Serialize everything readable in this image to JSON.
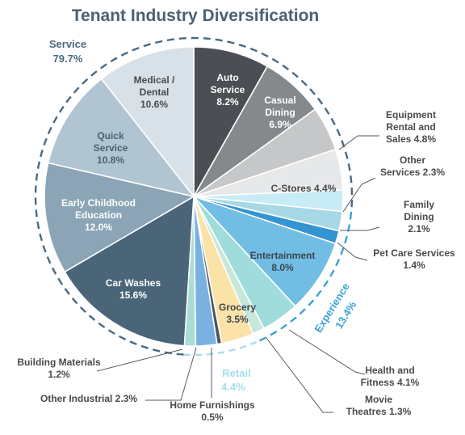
{
  "chart_data": {
    "type": "pie",
    "title": "Tenant Industry Diversification",
    "groups": [
      {
        "name": "Service",
        "value": "79.7%",
        "color": "#4a6a82"
      },
      {
        "name": "Experience",
        "value": "13.4%",
        "color": "#3aa3d6"
      },
      {
        "name": "Retail",
        "value": "4.4%",
        "color": "#a8dcea"
      }
    ],
    "slices": [
      {
        "label": "Auto Service",
        "value": 8.2,
        "display": "8.2%",
        "color": "#4b4f55",
        "text_color": "#ffffff"
      },
      {
        "label": "Casual Dining",
        "value": 6.9,
        "display": "6.9%",
        "color": "#86898c",
        "text_color": "#ffffff"
      },
      {
        "label": "Equipment Rental and Sales",
        "value": 4.8,
        "display": "4.8%",
        "color": "#c5c7c9",
        "text_color": "#4a4a4a"
      },
      {
        "label": "C-Stores",
        "value": 4.4,
        "display": "4.4%",
        "color": "#e7e8e9",
        "text_color": "#4a4a4a"
      },
      {
        "label": "Other Services",
        "value": 2.3,
        "display": "2.3%",
        "color": "#c8ecf5",
        "text_color": "#4a4a4a"
      },
      {
        "label": "Family Dining",
        "value": 2.1,
        "display": "2.1%",
        "color": "#a7d8e6",
        "text_color": "#4a4a4a"
      },
      {
        "label": "Pet Care Services",
        "value": 1.4,
        "display": "1.4%",
        "color": "#3394d1",
        "text_color": "#4a4a4a"
      },
      {
        "label": "Entertainment",
        "value": 8.0,
        "display": "8.0%",
        "color": "#72bde4",
        "text_color": "#3a4650"
      },
      {
        "label": "Health and Fitness",
        "value": 4.1,
        "display": "4.1%",
        "color": "#9fdcdb",
        "text_color": "#4a4a4a"
      },
      {
        "label": "Movie Theatres",
        "value": 1.3,
        "display": "1.3%",
        "color": "#c7e8d9",
        "text_color": "#4a4a4a"
      },
      {
        "label": "Grocery",
        "value": 3.5,
        "display": "3.5%",
        "color": "#fbe2a6",
        "text_color": "#3a4650"
      },
      {
        "label": "Home Furnishings",
        "value": 0.5,
        "display": "0.5%",
        "color": "#4a5560",
        "text_color": "#4a4a4a"
      },
      {
        "label": "Other Industrial",
        "value": 2.3,
        "display": "2.3%",
        "color": "#79b1e2",
        "text_color": "#4a4a4a"
      },
      {
        "label": "Building Materials",
        "value": 1.2,
        "display": "1.2%",
        "color": "#a9dcd6",
        "text_color": "#4a4a4a"
      },
      {
        "label": "Car Washes",
        "value": 15.6,
        "display": "15.6%",
        "color": "#4a6577",
        "text_color": "#ffffff"
      },
      {
        "label": "Early Childhood Education",
        "value": 12.0,
        "display": "12.0%",
        "color": "#8ba4b6",
        "text_color": "#ffffff"
      },
      {
        "label": "Quick Service",
        "value": 10.8,
        "display": "10.8%",
        "color": "#b1c4d2",
        "text_color": "#4a6272"
      },
      {
        "label": "Medical / Dental",
        "value": 10.6,
        "display": "10.6%",
        "color": "#d8e1e8",
        "text_color": "#4a4a4a"
      }
    ]
  }
}
